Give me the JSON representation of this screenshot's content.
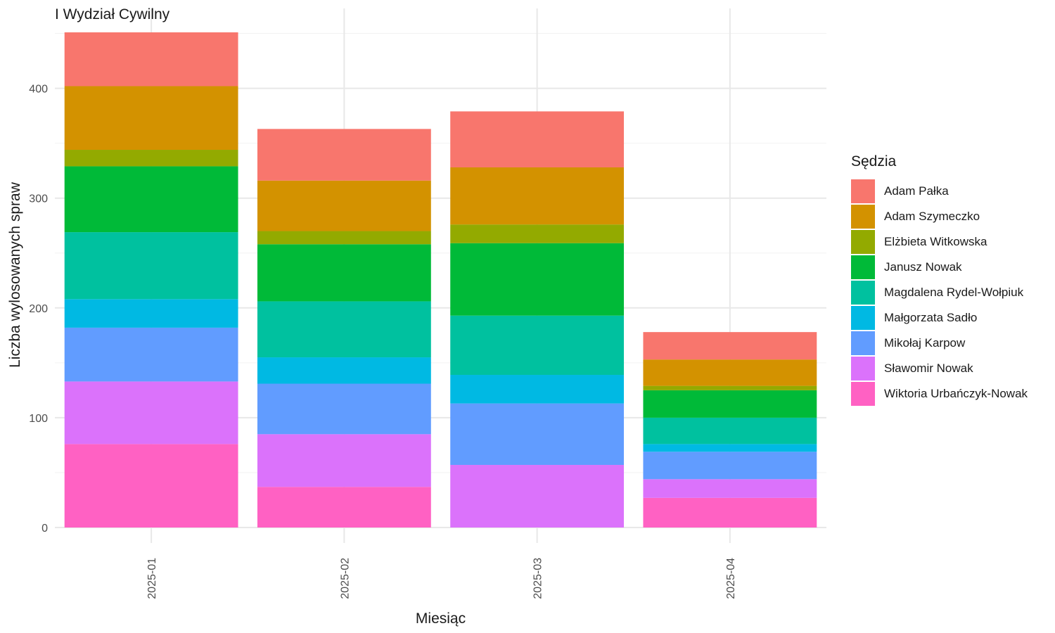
{
  "chart_data": {
    "type": "bar",
    "stacked": true,
    "title": "I Wydział Cywilny",
    "xlabel": "Miesiąc",
    "ylabel": "Liczba wylosowanych spraw",
    "categories": [
      "2025-01",
      "2025-02",
      "2025-03",
      "2025-04"
    ],
    "ylim": [
      0,
      451
    ],
    "yticks": [
      0,
      100,
      200,
      300,
      400
    ],
    "grid": true,
    "legend_title": "Sędzia",
    "legend_position": "right",
    "series": [
      {
        "name": "Adam Pałka",
        "color": "#F8766D",
        "values": [
          49,
          47,
          51,
          25
        ]
      },
      {
        "name": "Adam Szymeczko",
        "color": "#D39200",
        "values": [
          58,
          46,
          52,
          24
        ]
      },
      {
        "name": "Elżbieta Witkowska",
        "color": "#93AA00",
        "values": [
          15,
          12,
          17,
          4
        ]
      },
      {
        "name": "Janusz Nowak",
        "color": "#00BA38",
        "values": [
          60,
          52,
          66,
          25
        ]
      },
      {
        "name": "Magdalena Rydel-Wołpiuk",
        "color": "#00C19F",
        "values": [
          61,
          51,
          54,
          24
        ]
      },
      {
        "name": "Małgorzata Sadło",
        "color": "#00B9E3",
        "values": [
          26,
          24,
          26,
          7
        ]
      },
      {
        "name": "Mikołaj Karpow",
        "color": "#619CFF",
        "values": [
          49,
          46,
          56,
          25
        ]
      },
      {
        "name": "Sławomir Nowak",
        "color": "#DB72FB",
        "values": [
          57,
          48,
          57,
          17
        ]
      },
      {
        "name": "Wiktoria Urbańczyk-Nowak",
        "color": "#FF61C3",
        "values": [
          76,
          37,
          0,
          27
        ]
      }
    ]
  }
}
